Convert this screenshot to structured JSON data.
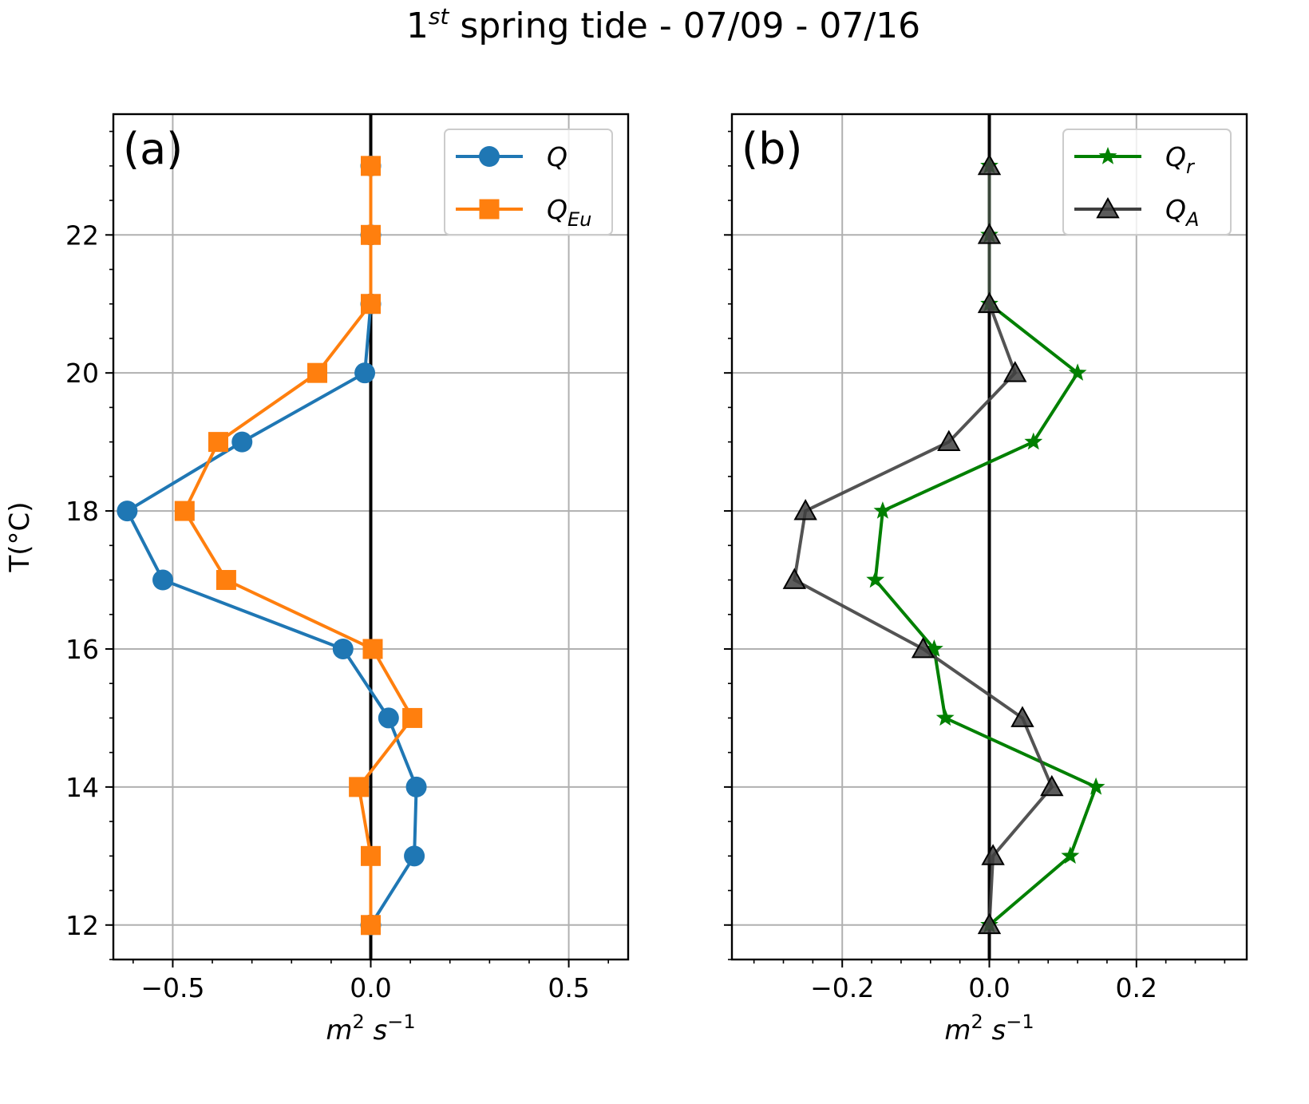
{
  "title": {
    "prefix": "1",
    "sup": "st",
    "rest": " spring tide - 07/09 - 07/16"
  },
  "colors": {
    "Q": "#1f77b4",
    "Q_Eu": "#ff7f0e",
    "Q_r": "#008000",
    "Q_A": "#404040"
  },
  "chart_data": [
    {
      "type": "line",
      "panel_label": "(a)",
      "xlabel": {
        "base": "m",
        "sup1": "2",
        "mid": " s",
        "sup2": "−1"
      },
      "ylabel": "T(°C)",
      "xlim": [
        -0.65,
        0.65
      ],
      "ylim": [
        11.5,
        23.75
      ],
      "xticks": [
        -0.5,
        0.0,
        0.5
      ],
      "xtick_labels": [
        "−0.5",
        "0.0",
        "0.5"
      ],
      "yticks": [
        12,
        14,
        16,
        18,
        20,
        22
      ],
      "ytick_labels": [
        "12",
        "14",
        "16",
        "18",
        "20",
        "22"
      ],
      "grid": true,
      "legend_position": "top-right",
      "y": [
        12,
        13,
        14,
        15,
        16,
        17,
        18,
        19,
        20,
        21,
        22,
        23
      ],
      "series": [
        {
          "name": "Q",
          "name_base": "Q",
          "name_sub": "",
          "marker": "circle",
          "color": "#1f77b4",
          "values": [
            0.0,
            0.11,
            0.115,
            0.045,
            -0.07,
            -0.525,
            -0.615,
            -0.325,
            -0.015,
            0.0,
            0.0,
            0.0
          ]
        },
        {
          "name": "QEu",
          "name_base": "Q",
          "name_sub": "Eu",
          "marker": "square",
          "color": "#ff7f0e",
          "values": [
            0.0,
            0.0,
            -0.03,
            0.105,
            0.005,
            -0.365,
            -0.47,
            -0.385,
            -0.135,
            0.0,
            0.0,
            0.0
          ]
        }
      ]
    },
    {
      "type": "line",
      "panel_label": "(b)",
      "xlabel": {
        "base": "m",
        "sup1": "2",
        "mid": " s",
        "sup2": "−1"
      },
      "xlim": [
        -0.35,
        0.35
      ],
      "ylim": [
        11.5,
        23.75
      ],
      "xticks": [
        -0.2,
        0.0,
        0.2
      ],
      "xtick_labels": [
        "−0.2",
        "0.0",
        "0.2"
      ],
      "yticks": [
        12,
        14,
        16,
        18,
        20,
        22
      ],
      "grid": true,
      "legend_position": "top-right",
      "y": [
        12,
        13,
        14,
        15,
        16,
        17,
        18,
        19,
        20,
        21,
        22,
        23
      ],
      "series": [
        {
          "name": "Qr",
          "name_base": "Q",
          "name_sub": "r",
          "marker": "star",
          "color": "#008000",
          "values": [
            0.0,
            0.11,
            0.145,
            -0.06,
            -0.075,
            -0.155,
            -0.145,
            0.06,
            0.12,
            0.0,
            0.0,
            0.0
          ]
        },
        {
          "name": "QA",
          "name_base": "Q",
          "name_sub": "A",
          "marker": "triangle",
          "color": "#404040",
          "values": [
            0.0,
            0.005,
            0.085,
            0.045,
            -0.09,
            -0.265,
            -0.25,
            -0.055,
            0.035,
            0.0,
            0.0,
            0.0
          ]
        }
      ]
    }
  ]
}
